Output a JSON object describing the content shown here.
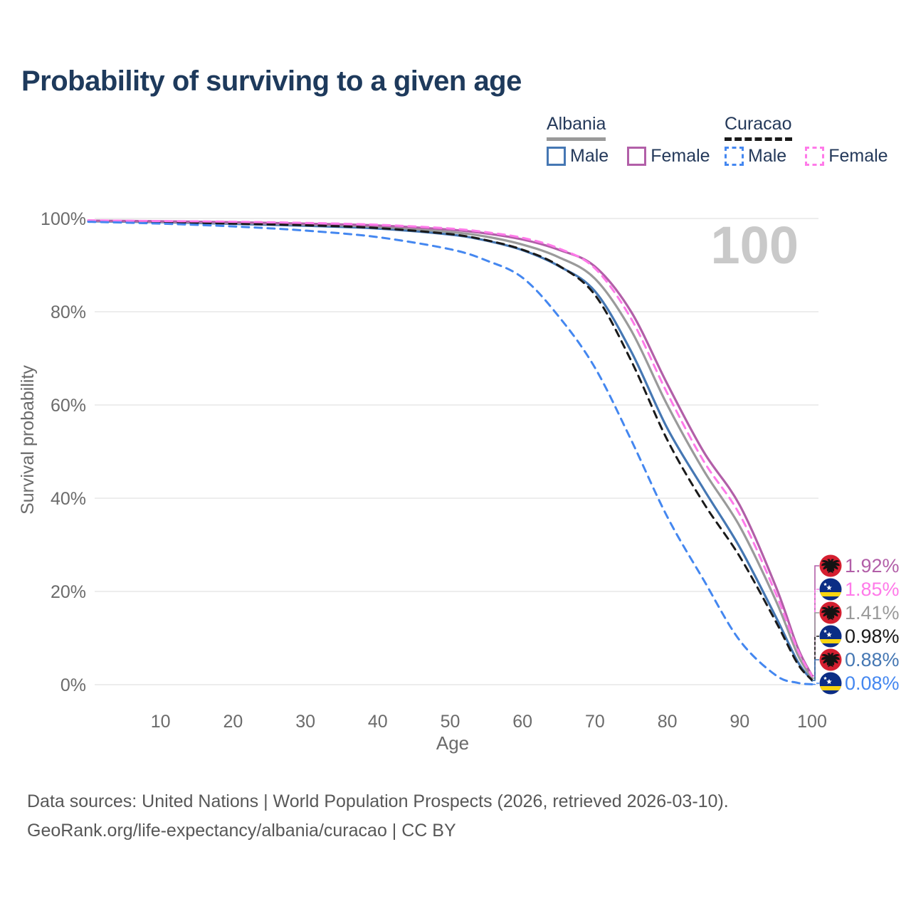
{
  "header": {
    "title": "Probability of surviving to a given age"
  },
  "legend": {
    "groups": [
      {
        "label": "Albania",
        "underline_style": "solid",
        "underline_color": "#9a9a9a",
        "items": [
          {
            "label": "Male",
            "color": "#4577b3",
            "dashed": false
          },
          {
            "label": "Female",
            "color": "#b25fa8",
            "dashed": false
          }
        ]
      },
      {
        "label": "Curacao",
        "underline_style": "dashed",
        "underline_color": "#1a1a1a",
        "items": [
          {
            "label": "Male",
            "color": "#4487f0",
            "dashed": true
          },
          {
            "label": "Female",
            "color": "#ff7ae9",
            "dashed": true
          }
        ]
      }
    ]
  },
  "chart_data": {
    "type": "line",
    "title": "Probability of surviving to a given age",
    "xlabel": "Age",
    "ylabel": "Survival probability",
    "watermark": "100",
    "xlim": [
      0,
      100
    ],
    "ylim": [
      0,
      100
    ],
    "grid": "horizontal",
    "legend_position": "top-right",
    "xticks": [
      10,
      20,
      30,
      40,
      50,
      60,
      70,
      80,
      90,
      100
    ],
    "yticks": [
      {
        "value": 0,
        "label": "0%"
      },
      {
        "value": 20,
        "label": "20%"
      },
      {
        "value": 40,
        "label": "40%"
      },
      {
        "value": 60,
        "label": "60%"
      },
      {
        "value": 80,
        "label": "80%"
      },
      {
        "value": 100,
        "label": "100%"
      }
    ],
    "x": [
      0,
      10,
      20,
      30,
      40,
      50,
      55,
      60,
      65,
      70,
      75,
      80,
      85,
      90,
      95,
      98,
      100
    ],
    "series": [
      {
        "name": "Albania Female",
        "country": "Albania",
        "sex": "Female",
        "flag": "albania",
        "color": "#b25fa8",
        "dashed": false,
        "end_label": "1.92%",
        "values": [
          99.55,
          99.4,
          99.2,
          98.9,
          98.5,
          97.6,
          96.8,
          95.5,
          93.3,
          89.7,
          80.0,
          64.5,
          50.0,
          38.5,
          21.0,
          8.0,
          1.92
        ]
      },
      {
        "name": "Curacao Female",
        "country": "Curacao",
        "sex": "Female",
        "flag": "curacao",
        "color": "#ff7ae9",
        "dashed": true,
        "end_label": "1.85%",
        "values": [
          99.6,
          99.45,
          99.3,
          99.05,
          98.65,
          97.85,
          97.05,
          95.85,
          93.6,
          89.3,
          78.5,
          62.5,
          48.0,
          36.5,
          19.5,
          7.5,
          1.85
        ]
      },
      {
        "name": "Albania",
        "country": "Albania",
        "sex": "Both",
        "flag": "albania",
        "color": "#9a9a9a",
        "dashed": false,
        "end_label": "1.41%",
        "values": [
          99.5,
          99.3,
          99.05,
          98.7,
          98.2,
          97.1,
          96.1,
          94.4,
          91.7,
          87.1,
          76.0,
          60.0,
          46.0,
          34.0,
          18.0,
          6.5,
          1.41
        ]
      },
      {
        "name": "Curacao",
        "country": "Curacao",
        "sex": "Both",
        "flag": "curacao",
        "color": "#1a1a1a",
        "dashed": true,
        "end_label": "0.98%",
        "values": [
          99.45,
          99.25,
          98.9,
          98.55,
          97.95,
          96.65,
          95.35,
          93.3,
          89.9,
          83.6,
          69.5,
          52.5,
          39.0,
          27.5,
          13.5,
          4.5,
          0.98
        ]
      },
      {
        "name": "Albania Male",
        "country": "Albania",
        "sex": "Male",
        "flag": "albania",
        "color": "#4577b3",
        "dashed": false,
        "end_label": "0.88%",
        "values": [
          99.4,
          99.2,
          98.85,
          98.45,
          97.85,
          96.55,
          95.25,
          93.2,
          89.8,
          84.4,
          71.5,
          55.0,
          42.0,
          29.5,
          14.5,
          5.0,
          0.88
        ]
      },
      {
        "name": "Curacao Male",
        "country": "Curacao",
        "sex": "Male",
        "flag": "curacao",
        "color": "#4487f0",
        "dashed": true,
        "end_label": "0.08%",
        "values": [
          99.3,
          98.9,
          98.3,
          97.4,
          96.0,
          93.4,
          91.0,
          87.3,
          79.0,
          68.0,
          52.5,
          36.0,
          22.5,
          9.5,
          2.0,
          0.4,
          0.08
        ]
      }
    ],
    "flag_colors": {
      "albania": {
        "background": "#d41f30",
        "eagle": "#131313"
      },
      "curacao": {
        "background": "#0b2d85",
        "band": "#f8d410",
        "stars": "#ffffff"
      }
    }
  },
  "footer": {
    "line1": "Data sources: United Nations | World Population Prospects (2026, retrieved 2026-03-10).",
    "line2": "GeoRank.org/life-expectancy/albania/curacao | CC BY"
  }
}
